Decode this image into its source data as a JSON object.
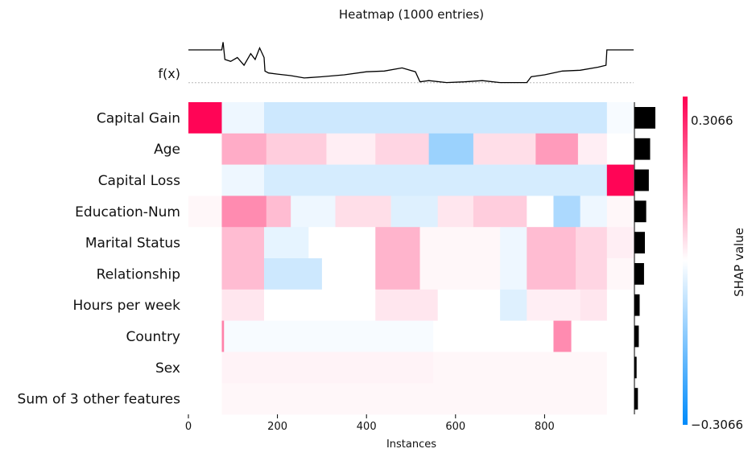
{
  "chart_data": {
    "type": "heatmap",
    "title": "Heatmap (1000 entries)",
    "xlabel": "Instances",
    "x_ticks": [
      0,
      200,
      400,
      600,
      800
    ],
    "xlim": [
      0,
      1000
    ],
    "fx_label": "f(x)",
    "colorbar": {
      "label": "SHAP value",
      "max_label": "0.3066",
      "min_label": "−0.3066",
      "vmin": -0.3066,
      "vmax": 0.3066,
      "colors": {
        "negative": "#008bfb",
        "positive": "#ff0052",
        "middle": "#ffffff"
      }
    },
    "features": [
      "Capital Gain",
      "Age",
      "Capital Loss",
      "Education-Num",
      "Marital Status",
      "Relationship",
      "Hours per week",
      "Country",
      "Sex",
      "Sum of 3 other features"
    ],
    "importance": [
      0.048,
      0.036,
      0.033,
      0.027,
      0.024,
      0.022,
      0.012,
      0.01,
      0.005,
      0.008
    ],
    "segments": [
      {
        "feature": "Capital Gain",
        "blocks": [
          [
            0,
            75,
            0.3
          ],
          [
            75,
            170,
            -0.02
          ],
          [
            170,
            940,
            -0.06
          ],
          [
            940,
            1000,
            -0.01
          ]
        ]
      },
      {
        "feature": "Age",
        "blocks": [
          [
            0,
            75,
            0.0
          ],
          [
            75,
            175,
            0.1
          ],
          [
            175,
            310,
            0.06
          ],
          [
            310,
            420,
            0.02
          ],
          [
            420,
            540,
            0.05
          ],
          [
            540,
            640,
            -0.12
          ],
          [
            640,
            780,
            0.04
          ],
          [
            780,
            875,
            0.12
          ],
          [
            875,
            940,
            0.02
          ],
          [
            940,
            1000,
            0.0
          ]
        ]
      },
      {
        "feature": "Capital Loss",
        "blocks": [
          [
            0,
            75,
            0.0
          ],
          [
            75,
            170,
            -0.02
          ],
          [
            170,
            940,
            -0.05
          ],
          [
            940,
            1000,
            0.3
          ]
        ]
      },
      {
        "feature": "Education-Num",
        "blocks": [
          [
            0,
            75,
            0.01
          ],
          [
            75,
            175,
            0.14
          ],
          [
            175,
            230,
            0.08
          ],
          [
            230,
            330,
            -0.02
          ],
          [
            330,
            455,
            0.04
          ],
          [
            455,
            560,
            -0.04
          ],
          [
            560,
            640,
            0.03
          ],
          [
            640,
            760,
            0.06
          ],
          [
            760,
            820,
            0.0
          ],
          [
            820,
            880,
            -0.1
          ],
          [
            880,
            940,
            -0.02
          ],
          [
            940,
            1000,
            0.01
          ]
        ]
      },
      {
        "feature": "Marital Status",
        "blocks": [
          [
            0,
            75,
            0.0
          ],
          [
            75,
            170,
            0.08
          ],
          [
            170,
            270,
            -0.03
          ],
          [
            270,
            420,
            0.0
          ],
          [
            420,
            520,
            0.09
          ],
          [
            520,
            700,
            0.01
          ],
          [
            700,
            760,
            -0.02
          ],
          [
            760,
            870,
            0.08
          ],
          [
            870,
            940,
            0.05
          ],
          [
            940,
            1000,
            0.02
          ]
        ]
      },
      {
        "feature": "Relationship",
        "blocks": [
          [
            0,
            75,
            0.0
          ],
          [
            75,
            170,
            0.08
          ],
          [
            170,
            300,
            -0.06
          ],
          [
            300,
            420,
            0.0
          ],
          [
            420,
            520,
            0.09
          ],
          [
            520,
            700,
            0.01
          ],
          [
            700,
            760,
            -0.02
          ],
          [
            760,
            870,
            0.08
          ],
          [
            870,
            940,
            0.05
          ],
          [
            940,
            1000,
            0.01
          ]
        ]
      },
      {
        "feature": "Hours per week",
        "blocks": [
          [
            0,
            75,
            0.0
          ],
          [
            75,
            170,
            0.03
          ],
          [
            170,
            420,
            0.0
          ],
          [
            420,
            560,
            0.03
          ],
          [
            560,
            700,
            0.0
          ],
          [
            700,
            760,
            -0.04
          ],
          [
            760,
            880,
            0.02
          ],
          [
            880,
            940,
            0.03
          ],
          [
            940,
            1000,
            0.0
          ]
        ]
      },
      {
        "feature": "Country",
        "blocks": [
          [
            0,
            75,
            0.0
          ],
          [
            75,
            80,
            0.15
          ],
          [
            80,
            550,
            -0.01
          ],
          [
            550,
            820,
            0.0
          ],
          [
            820,
            860,
            0.14
          ],
          [
            860,
            940,
            0.0
          ],
          [
            940,
            1000,
            0.0
          ]
        ]
      },
      {
        "feature": "Sex",
        "blocks": [
          [
            0,
            75,
            0.0
          ],
          [
            75,
            550,
            0.015
          ],
          [
            550,
            940,
            0.01
          ],
          [
            940,
            1000,
            0.0
          ]
        ]
      },
      {
        "feature": "Sum of 3 other features",
        "blocks": [
          [
            0,
            75,
            0.0
          ],
          [
            75,
            940,
            0.01
          ],
          [
            940,
            1000,
            0.0
          ]
        ]
      }
    ],
    "fx_points": [
      [
        0,
        0.75
      ],
      [
        75,
        0.75
      ],
      [
        78,
        0.95
      ],
      [
        82,
        0.5
      ],
      [
        95,
        0.45
      ],
      [
        110,
        0.55
      ],
      [
        125,
        0.35
      ],
      [
        140,
        0.65
      ],
      [
        150,
        0.5
      ],
      [
        160,
        0.8
      ],
      [
        170,
        0.55
      ],
      [
        172,
        0.2
      ],
      [
        180,
        0.15
      ],
      [
        200,
        0.12
      ],
      [
        230,
        0.08
      ],
      [
        260,
        0.02
      ],
      [
        300,
        0.05
      ],
      [
        350,
        0.1
      ],
      [
        400,
        0.18
      ],
      [
        440,
        0.2
      ],
      [
        480,
        0.28
      ],
      [
        510,
        0.18
      ],
      [
        520,
        -0.08
      ],
      [
        540,
        -0.05
      ],
      [
        580,
        -0.1
      ],
      [
        620,
        -0.08
      ],
      [
        660,
        -0.05
      ],
      [
        700,
        -0.1
      ],
      [
        760,
        -0.1
      ],
      [
        770,
        0.05
      ],
      [
        800,
        0.1
      ],
      [
        840,
        0.2
      ],
      [
        880,
        0.22
      ],
      [
        920,
        0.3
      ],
      [
        938,
        0.35
      ],
      [
        940,
        0.75
      ],
      [
        1000,
        0.75
      ]
    ],
    "fx_baseline": 0.0
  }
}
